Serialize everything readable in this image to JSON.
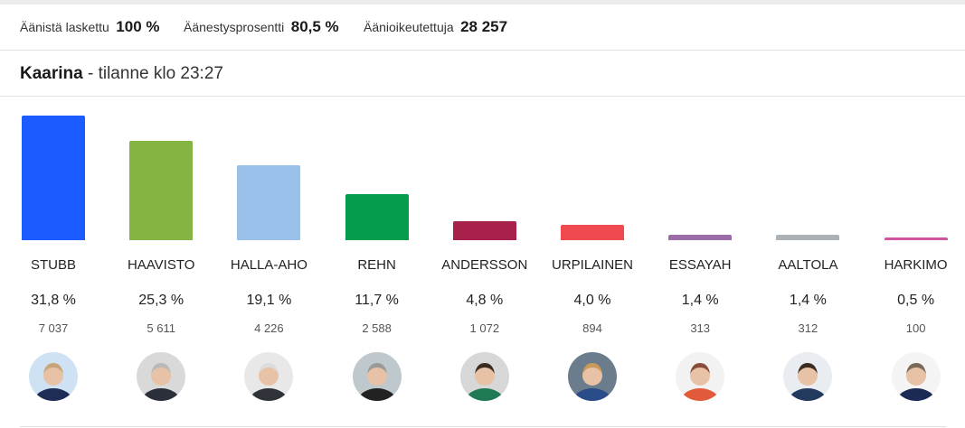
{
  "stats": {
    "counted_label": "Äänistä laskettu",
    "counted_value": "100 %",
    "turnout_label": "Äänestysprosentti",
    "turnout_value": "80,5 %",
    "eligible_label": "Äänioikeutettuja",
    "eligible_value": "28 257"
  },
  "header": {
    "municipality": "Kaarina",
    "status": " - tilanne klo 23:27"
  },
  "chart_data": {
    "type": "bar",
    "categories": [
      "STUBB",
      "HAAVISTO",
      "HALLA-AHO",
      "REHN",
      "ANDERSSON",
      "URPILAINEN",
      "ESSAYAH",
      "AALTOLA",
      "HARKIMO"
    ],
    "values": [
      31.8,
      25.3,
      19.1,
      11.7,
      4.8,
      4.0,
      1.4,
      1.4,
      0.5
    ],
    "value_labels": [
      "31,8 %",
      "25,3 %",
      "19,1 %",
      "11,7 %",
      "4,8 %",
      "4,0 %",
      "1,4 %",
      "1,4 %",
      "0,5 %"
    ],
    "votes": [
      "7 037",
      "5 611",
      "4 226",
      "2 588",
      "1 072",
      "894",
      "313",
      "312",
      "100"
    ],
    "colors": [
      "#1a5cff",
      "#86b442",
      "#98c0e8",
      "#069c4e",
      "#a8214a",
      "#f04a50",
      "#9b6ca8",
      "#aab2b8",
      "#d0559f"
    ]
  },
  "candidates": [
    {
      "name": "STUBB",
      "icon": "candidate-photo"
    },
    {
      "name": "HAAVISTO",
      "icon": "candidate-photo"
    },
    {
      "name": "HALLA-AHO",
      "icon": "candidate-photo"
    },
    {
      "name": "REHN",
      "icon": "candidate-photo"
    },
    {
      "name": "ANDERSSON",
      "icon": "candidate-photo"
    },
    {
      "name": "URPILAINEN",
      "icon": "candidate-photo"
    },
    {
      "name": "ESSAYAH",
      "icon": "candidate-photo"
    },
    {
      "name": "AALTOLA",
      "icon": "candidate-photo"
    },
    {
      "name": "HARKIMO",
      "icon": "candidate-photo"
    }
  ]
}
